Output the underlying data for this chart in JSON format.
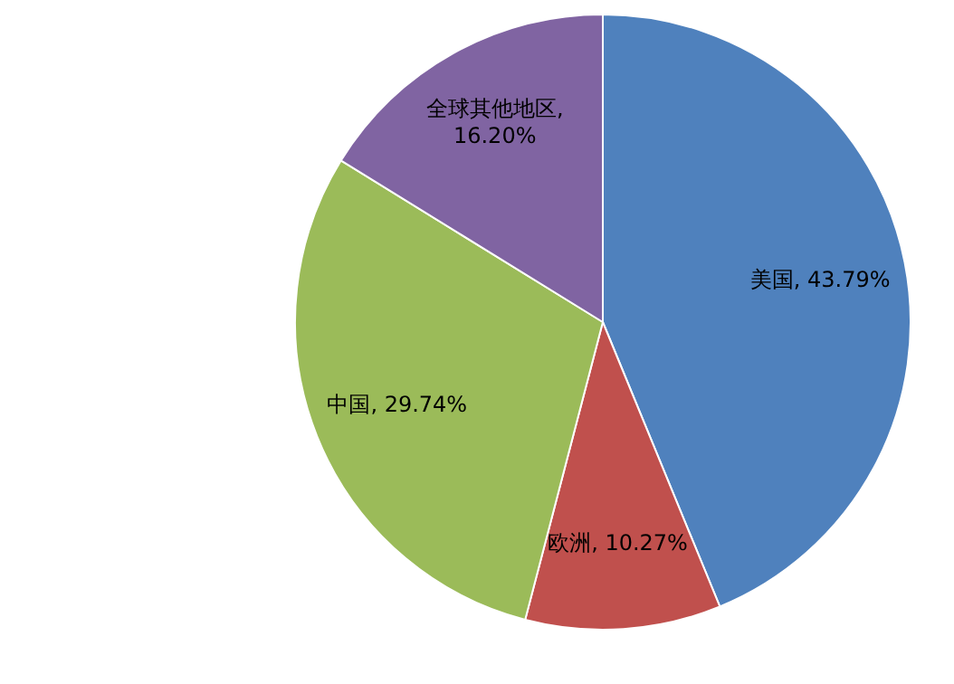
{
  "chart_data": {
    "type": "pie",
    "categories": [
      "美国",
      "欧洲",
      "中国",
      "全球其他地区"
    ],
    "values": [
      43.79,
      10.27,
      29.74,
      16.2
    ],
    "colors": [
      "#4f81bd",
      "#c0504d",
      "#9bbb59",
      "#8064a2"
    ],
    "value_labels": [
      ", 43.79%",
      ", 10.27%",
      ", 29.74%",
      ", 16.20%"
    ]
  }
}
